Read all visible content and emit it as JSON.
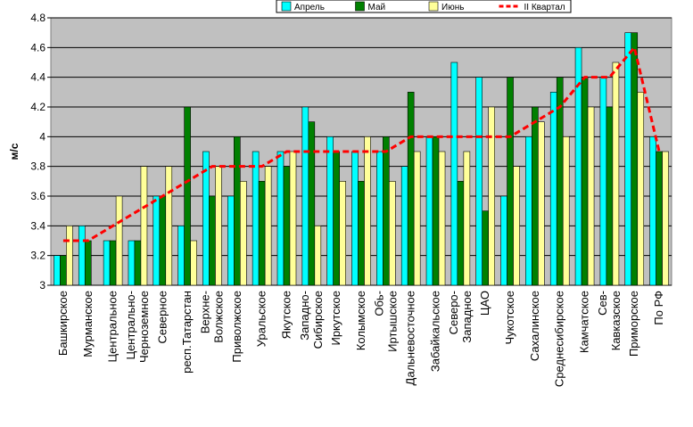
{
  "chart_data": {
    "type": "bar_line",
    "y_label": "м/с",
    "categories": [
      "Башкирское",
      "Мурманское",
      "Центральное",
      "Центрально-\nЧерноземное",
      "Северное",
      "респ.Татарстан",
      "Верхне-\nВолжское",
      "Приволжское",
      "Уральское",
      "Якутское",
      "Западно-\nСибирское",
      "Иркутское",
      "Колымское",
      "Обь-\nИртышское",
      "Дальневосточное",
      "Забайкальское",
      "Северо-\nЗападное",
      "ЦАО",
      "Чукотское",
      "Сахалинское",
      "Среднесибирское",
      "Камчатское",
      "Сев-\nКавказское",
      "Приморское",
      "По РФ"
    ],
    "series": [
      {
        "name": "Апрель",
        "color": "#00ffff",
        "kind": "bar",
        "values": [
          3.2,
          3.4,
          3.3,
          3.3,
          3.6,
          3.4,
          3.9,
          3.6,
          3.9,
          3.9,
          4.2,
          4.0,
          3.9,
          3.9,
          3.8,
          4.0,
          4.5,
          4.4,
          3.6,
          4.0,
          4.3,
          4.6,
          4.4,
          4.7,
          4.0
        ]
      },
      {
        "name": "Май",
        "color": "#008000",
        "kind": "bar",
        "values": [
          3.2,
          3.3,
          3.3,
          3.3,
          3.6,
          4.2,
          3.6,
          4.0,
          3.7,
          3.8,
          4.1,
          3.9,
          3.7,
          4.0,
          4.3,
          4.0,
          3.7,
          3.5,
          4.4,
          4.2,
          4.4,
          4.4,
          4.2,
          4.7,
          3.9
        ]
      },
      {
        "name": "Июнь",
        "color": "#ffff99",
        "kind": "bar",
        "values": [
          3.4,
          3.0,
          3.6,
          3.8,
          3.8,
          3.3,
          3.8,
          3.7,
          3.8,
          3.9,
          3.4,
          3.7,
          4.0,
          3.7,
          3.9,
          3.9,
          3.9,
          4.2,
          3.8,
          4.1,
          4.0,
          4.2,
          4.5,
          4.3,
          3.9
        ]
      },
      {
        "name": "II Квартал",
        "color": "#ff0000",
        "kind": "line",
        "values": [
          3.3,
          3.3,
          3.4,
          3.5,
          3.6,
          3.7,
          3.8,
          3.8,
          3.8,
          3.9,
          3.9,
          3.9,
          3.9,
          3.9,
          4.0,
          4.0,
          4.0,
          4.0,
          4.0,
          4.1,
          4.2,
          4.4,
          4.4,
          4.6,
          3.9
        ]
      }
    ],
    "ylim": [
      3,
      4.8
    ],
    "yticks": [
      3,
      3.2,
      3.4,
      3.6,
      3.8,
      4,
      4.2,
      4.4,
      4.6,
      4.8
    ],
    "grid": true
  }
}
